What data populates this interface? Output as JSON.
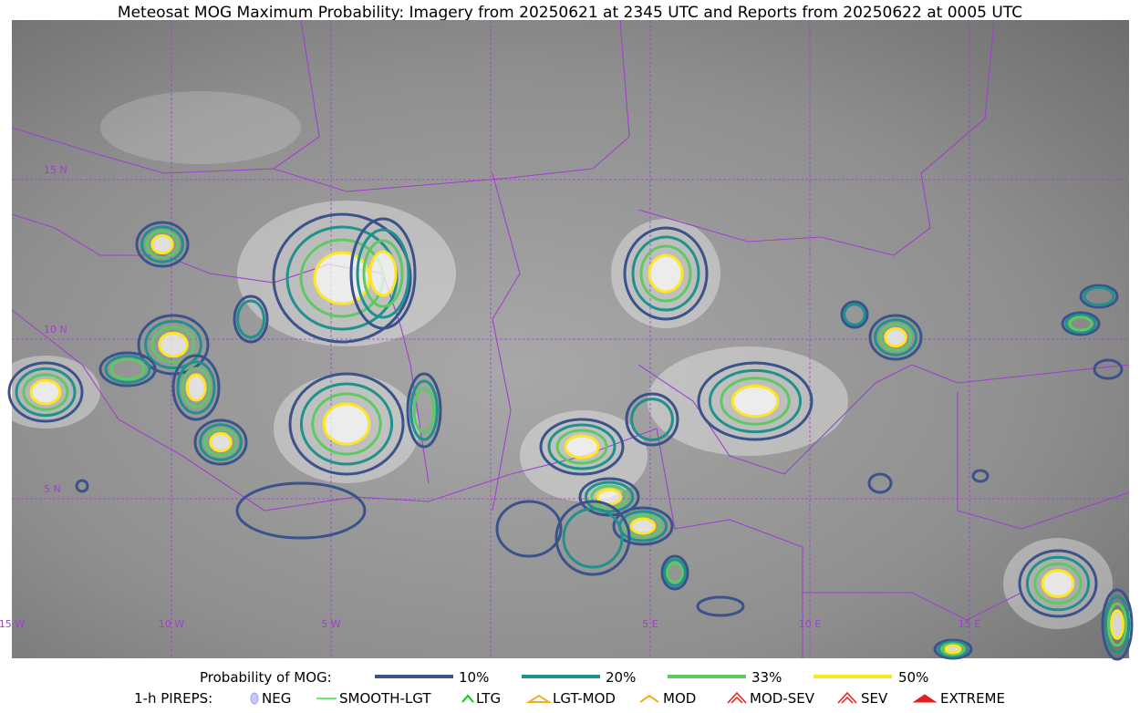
{
  "title": "Meteosat MOG Maximum Probability: Imagery from 20250621 at 2345 UTC and Reports from 20250622 at 0005 UTC",
  "map": {
    "lat_labels": [
      "15 N",
      "10 N",
      "5 N"
    ],
    "lon_labels": [
      "15 W",
      "10 W",
      "5 W",
      "5 E",
      "10 E",
      "15 E"
    ]
  },
  "legend": {
    "probability_title": "Probability of MOG:",
    "probability_levels": [
      "10%",
      "20%",
      "33%",
      "50%"
    ],
    "pireps_title": "1-h PIREPS:",
    "pireps": [
      "NEG",
      "SMOOTH-LGT",
      "LTG",
      "LGT-MOD",
      "MOD",
      "MOD-SEV",
      "SEV",
      "EXTREME"
    ]
  }
}
